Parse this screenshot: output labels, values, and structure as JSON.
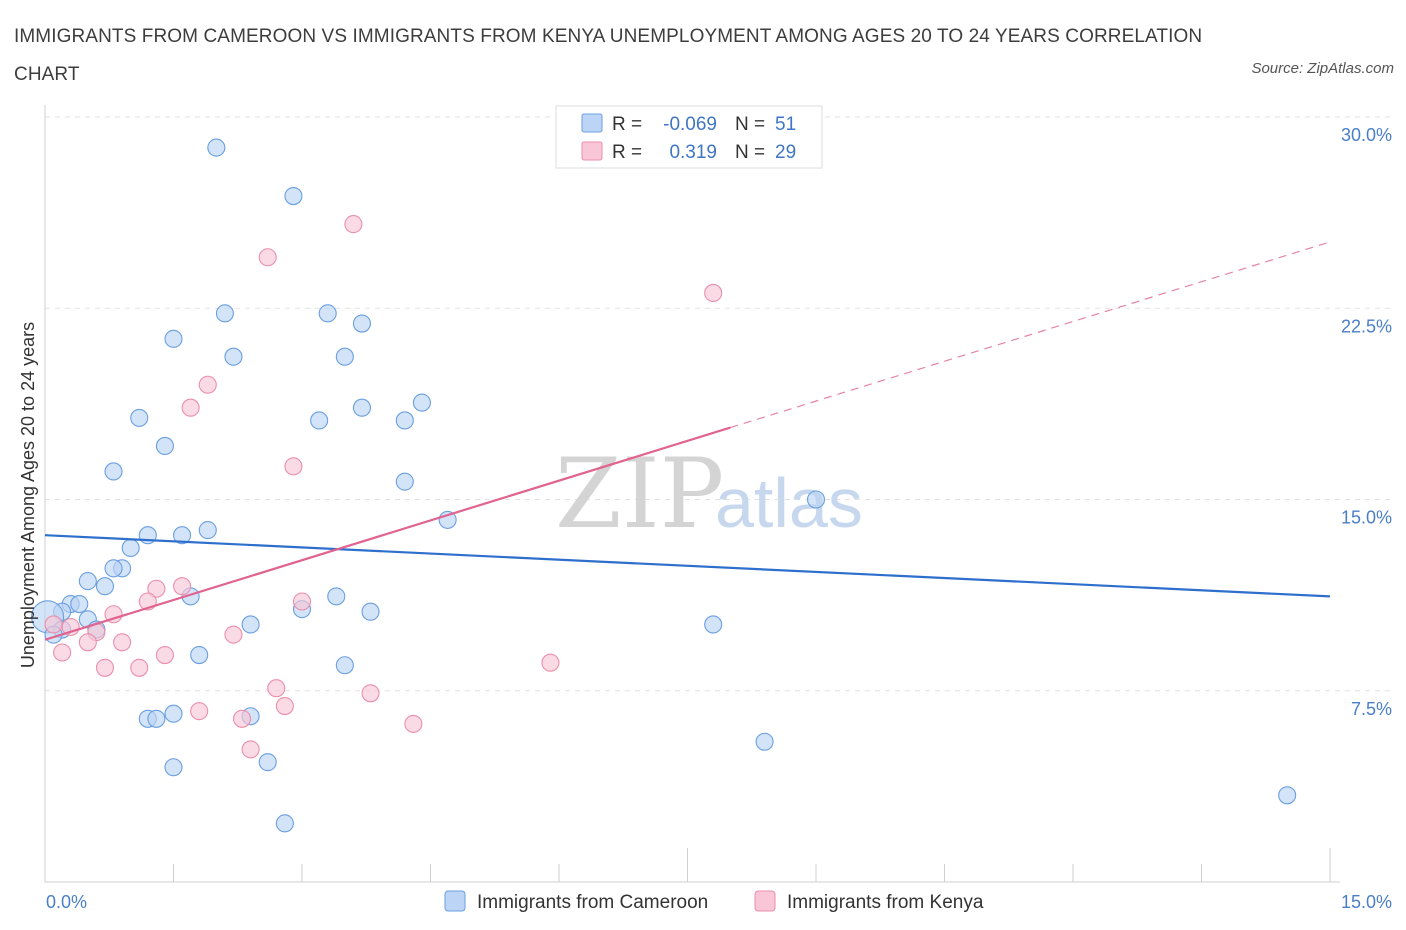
{
  "title": "IMMIGRANTS FROM CAMEROON VS IMMIGRANTS FROM KENYA UNEMPLOYMENT AMONG AGES 20 TO 24 YEARS CORRELATION CHART",
  "source": "Source: ZipAtlas.com",
  "watermark": {
    "zip": "ZIP",
    "atlas": "atlas"
  },
  "legend_top": [
    {
      "r_label": "R =",
      "r_value": "-0.069",
      "n_label": "N =",
      "n_value": "51"
    },
    {
      "r_label": "R =",
      "r_value": "0.319",
      "n_label": "N =",
      "n_value": "29"
    }
  ],
  "colors": {
    "cameroon_fill": "#bcd4f5",
    "cameroon_stroke": "#6a9fe0",
    "cameroon_line": "#2e6fce",
    "kenya_fill": "#f8c6d6",
    "kenya_stroke": "#eb8fab",
    "kenya_line": "#e0648f"
  },
  "chart_data": {
    "type": "scatter",
    "title": "IMMIGRANTS FROM CAMEROON VS IMMIGRANTS FROM KENYA UNEMPLOYMENT AMONG AGES 20 TO 24 YEARS CORRELATION CHART",
    "xlabel": "",
    "ylabel": "Unemployment Among Ages 20 to 24 years",
    "xlim": [
      0,
      15
    ],
    "ylim": [
      0,
      30
    ],
    "x_tick_labels": [
      "0.0%",
      "15.0%"
    ],
    "y_tick_labels": [
      "7.5%",
      "15.0%",
      "22.5%",
      "30.0%"
    ],
    "y_ticks": [
      7.5,
      15,
      22.5,
      30
    ],
    "grid": true,
    "legend_position": "top-center",
    "series": [
      {
        "name": "Immigrants from Cameroon",
        "r": -0.069,
        "n": 51,
        "trend": {
          "x": [
            0,
            15
          ],
          "y": [
            13.6,
            11.2
          ],
          "dashed_from": null
        },
        "points": [
          [
            2.0,
            28.8
          ],
          [
            2.9,
            26.9
          ],
          [
            2.1,
            22.3
          ],
          [
            3.3,
            22.3
          ],
          [
            3.7,
            21.9
          ],
          [
            1.5,
            21.3
          ],
          [
            2.2,
            20.6
          ],
          [
            3.5,
            20.6
          ],
          [
            3.7,
            18.6
          ],
          [
            4.4,
            18.8
          ],
          [
            1.1,
            18.2
          ],
          [
            3.2,
            18.1
          ],
          [
            4.2,
            18.1
          ],
          [
            1.4,
            17.1
          ],
          [
            0.8,
            16.1
          ],
          [
            4.2,
            15.7
          ],
          [
            9.0,
            15.0
          ],
          [
            4.7,
            14.2
          ],
          [
            1.9,
            13.8
          ],
          [
            1.2,
            13.6
          ],
          [
            1.6,
            13.6
          ],
          [
            1.0,
            13.1
          ],
          [
            0.9,
            12.3
          ],
          [
            0.8,
            12.3
          ],
          [
            0.5,
            11.8
          ],
          [
            0.7,
            11.6
          ],
          [
            1.7,
            11.2
          ],
          [
            3.4,
            11.2
          ],
          [
            0.3,
            10.9
          ],
          [
            0.4,
            10.9
          ],
          [
            3.0,
            10.7
          ],
          [
            3.8,
            10.6
          ],
          [
            0.2,
            10.6
          ],
          [
            0.03,
            10.4
          ],
          [
            0.5,
            10.3
          ],
          [
            2.4,
            10.1
          ],
          [
            7.8,
            10.1
          ],
          [
            0.2,
            9.9
          ],
          [
            0.6,
            9.9
          ],
          [
            0.1,
            9.7
          ],
          [
            1.8,
            8.9
          ],
          [
            3.5,
            8.5
          ],
          [
            1.5,
            6.6
          ],
          [
            1.2,
            6.4
          ],
          [
            1.3,
            6.4
          ],
          [
            2.4,
            6.5
          ],
          [
            8.4,
            5.5
          ],
          [
            2.6,
            4.7
          ],
          [
            1.5,
            4.5
          ],
          [
            2.8,
            2.3
          ],
          [
            14.5,
            3.4
          ]
        ]
      },
      {
        "name": "Immigrants from Kenya",
        "r": 0.319,
        "n": 29,
        "trend": {
          "x": [
            0,
            15
          ],
          "y": [
            9.5,
            25.1
          ],
          "solid_until_x": 8.0
        },
        "points": [
          [
            3.6,
            25.8
          ],
          [
            2.6,
            24.5
          ],
          [
            7.8,
            23.1
          ],
          [
            1.9,
            19.5
          ],
          [
            1.7,
            18.6
          ],
          [
            2.9,
            16.3
          ],
          [
            1.3,
            11.5
          ],
          [
            1.6,
            11.6
          ],
          [
            1.2,
            11.0
          ],
          [
            3.0,
            11.0
          ],
          [
            0.8,
            10.5
          ],
          [
            0.1,
            10.1
          ],
          [
            0.3,
            10.0
          ],
          [
            0.6,
            9.8
          ],
          [
            2.2,
            9.7
          ],
          [
            0.5,
            9.4
          ],
          [
            0.9,
            9.4
          ],
          [
            1.4,
            8.9
          ],
          [
            0.7,
            8.4
          ],
          [
            1.1,
            8.4
          ],
          [
            5.9,
            8.6
          ],
          [
            0.2,
            9.0
          ],
          [
            2.7,
            7.6
          ],
          [
            3.8,
            7.4
          ],
          [
            2.8,
            6.9
          ],
          [
            1.8,
            6.7
          ],
          [
            2.3,
            6.4
          ],
          [
            4.3,
            6.2
          ],
          [
            2.4,
            5.2
          ]
        ]
      }
    ]
  }
}
